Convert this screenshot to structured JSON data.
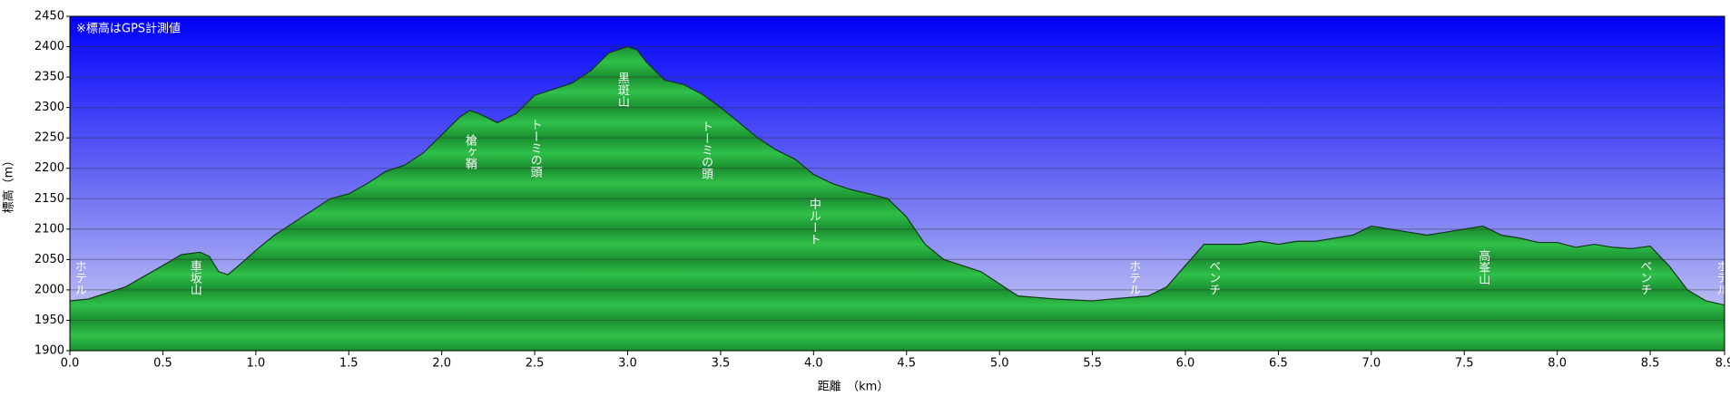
{
  "chart_data": {
    "type": "area",
    "note": "※標高はGPS計測値",
    "ylabel": "標高（m）",
    "xlabel": "距離　（km）",
    "color": "#22a83a",
    "grid": true,
    "xlim": [
      0,
      8.9
    ],
    "ylim": [
      1900,
      2450
    ],
    "xticks": [
      {
        "value": 0,
        "label": "0.0"
      },
      0.5,
      {
        "value": 1,
        "label": "1.0"
      },
      1.5,
      {
        "value": 2,
        "label": "2.0"
      },
      2.5,
      {
        "value": 3,
        "label": "3.0"
      },
      3.5,
      {
        "value": 4,
        "label": "4.0"
      },
      4.5,
      {
        "value": 5,
        "label": "5.0"
      },
      5.5,
      {
        "value": 6,
        "label": "6.0"
      },
      6.5,
      {
        "value": 7,
        "label": "7.0"
      },
      7.5,
      {
        "value": 8,
        "label": "8.0"
      },
      8.5,
      8.9
    ],
    "yticks": [
      1900,
      1950,
      2000,
      2050,
      2100,
      2150,
      2200,
      2250,
      2300,
      2350,
      2400,
      2450
    ],
    "x": [
      0,
      0.1,
      0.3,
      0.5,
      0.6,
      0.7,
      0.75,
      0.8,
      0.85,
      0.9,
      1.0,
      1.1,
      1.2,
      1.3,
      1.4,
      1.5,
      1.6,
      1.7,
      1.8,
      1.9,
      2.0,
      2.1,
      2.15,
      2.2,
      2.3,
      2.4,
      2.5,
      2.6,
      2.7,
      2.8,
      2.9,
      3.0,
      3.05,
      3.1,
      3.2,
      3.3,
      3.4,
      3.5,
      3.6,
      3.7,
      3.8,
      3.9,
      4.0,
      4.1,
      4.2,
      4.3,
      4.4,
      4.5,
      4.6,
      4.7,
      4.8,
      4.9,
      5.0,
      5.1,
      5.3,
      5.5,
      5.6,
      5.8,
      5.9,
      6.0,
      6.1,
      6.2,
      6.3,
      6.4,
      6.5,
      6.6,
      6.7,
      6.8,
      6.9,
      7.0,
      7.1,
      7.2,
      7.3,
      7.4,
      7.5,
      7.6,
      7.7,
      7.8,
      7.9,
      8.0,
      8.1,
      8.2,
      8.3,
      8.4,
      8.5,
      8.6,
      8.7,
      8.8,
      8.9
    ],
    "values": [
      1982,
      1985,
      2005,
      2040,
      2058,
      2062,
      2055,
      2030,
      2025,
      2038,
      2065,
      2090,
      2110,
      2130,
      2150,
      2158,
      2175,
      2195,
      2205,
      2225,
      2255,
      2285,
      2295,
      2290,
      2275,
      2290,
      2320,
      2330,
      2340,
      2360,
      2390,
      2400,
      2395,
      2375,
      2345,
      2338,
      2322,
      2300,
      2275,
      2250,
      2230,
      2215,
      2190,
      2175,
      2165,
      2158,
      2150,
      2120,
      2075,
      2050,
      2040,
      2030,
      2010,
      1990,
      1985,
      1982,
      1985,
      1990,
      2005,
      2040,
      2075,
      2075,
      2075,
      2080,
      2075,
      2080,
      2080,
      2085,
      2090,
      2105,
      2100,
      2095,
      2090,
      2095,
      2100,
      2105,
      2090,
      2085,
      2078,
      2078,
      2070,
      2075,
      2070,
      2068,
      2072,
      2040,
      2000,
      1982,
      1975
    ],
    "annotations": [
      {
        "text": "ホテル",
        "x": 0.05
      },
      {
        "text": "車坂山",
        "x": 0.67
      },
      {
        "text": "槍ヶ鞘",
        "x": 2.15
      },
      {
        "text": "トーミの頭",
        "x": 2.5
      },
      {
        "text": "黒斑山",
        "x": 2.97
      },
      {
        "text": "トーミの頭",
        "x": 3.42
      },
      {
        "text": "中ルート",
        "x": 4.0
      },
      {
        "text": "ホテル",
        "x": 5.72
      },
      {
        "text": "ベンチ",
        "x": 6.15
      },
      {
        "text": "高峯山",
        "x": 7.6
      },
      {
        "text": "ベンチ",
        "x": 8.47
      },
      {
        "text": "ホテル",
        "x": 8.88
      }
    ]
  }
}
